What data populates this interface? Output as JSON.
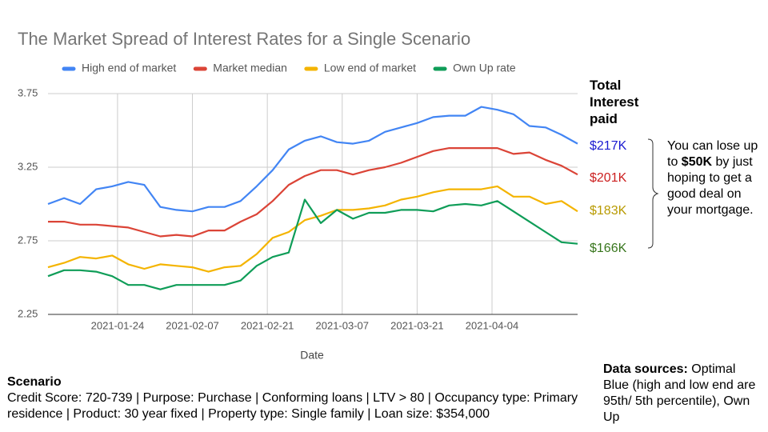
{
  "chart_data": {
    "type": "line",
    "title": "The Market Spread of Interest Rates for a Single Scenario",
    "xlabel": "Date",
    "x": [
      "2021-01-11",
      "2021-01-14",
      "2021-01-17",
      "2021-01-20",
      "2021-01-23",
      "2021-01-26",
      "2021-01-29",
      "2021-02-01",
      "2021-02-04",
      "2021-02-07",
      "2021-02-10",
      "2021-02-13",
      "2021-02-16",
      "2021-02-19",
      "2021-02-22",
      "2021-02-25",
      "2021-02-28",
      "2021-03-03",
      "2021-03-06",
      "2021-03-09",
      "2021-03-12",
      "2021-03-15",
      "2021-03-18",
      "2021-03-21",
      "2021-03-24",
      "2021-03-27",
      "2021-03-30",
      "2021-04-02",
      "2021-04-05",
      "2021-04-08",
      "2021-04-11",
      "2021-04-14",
      "2021-04-17",
      "2021-04-20"
    ],
    "series": [
      {
        "name": "High end of market",
        "color": "#4285f4",
        "values": [
          3.0,
          3.04,
          3.0,
          3.1,
          3.12,
          3.15,
          3.13,
          2.98,
          2.96,
          2.95,
          2.98,
          2.98,
          3.02,
          3.12,
          3.23,
          3.37,
          3.43,
          3.46,
          3.42,
          3.41,
          3.43,
          3.49,
          3.52,
          3.55,
          3.59,
          3.6,
          3.6,
          3.66,
          3.64,
          3.61,
          3.53,
          3.52,
          3.47,
          3.41
        ]
      },
      {
        "name": "Market median",
        "color": "#db4437",
        "values": [
          2.88,
          2.88,
          2.86,
          2.86,
          2.85,
          2.84,
          2.81,
          2.78,
          2.79,
          2.78,
          2.82,
          2.82,
          2.88,
          2.93,
          3.02,
          3.13,
          3.19,
          3.23,
          3.23,
          3.2,
          3.23,
          3.25,
          3.28,
          3.32,
          3.36,
          3.38,
          3.38,
          3.38,
          3.38,
          3.34,
          3.35,
          3.3,
          3.26,
          3.2
        ]
      },
      {
        "name": "Low end of market",
        "color": "#f4b400",
        "values": [
          2.57,
          2.6,
          2.64,
          2.63,
          2.65,
          2.59,
          2.56,
          2.59,
          2.58,
          2.57,
          2.54,
          2.57,
          2.58,
          2.66,
          2.77,
          2.81,
          2.89,
          2.92,
          2.96,
          2.96,
          2.97,
          2.99,
          3.03,
          3.05,
          3.08,
          3.1,
          3.1,
          3.1,
          3.12,
          3.05,
          3.05,
          3.0,
          3.02,
          2.95
        ]
      },
      {
        "name": "Own Up rate",
        "color": "#0f9d58",
        "values": [
          2.51,
          2.55,
          2.55,
          2.54,
          2.51,
          2.45,
          2.45,
          2.42,
          2.45,
          2.45,
          2.45,
          2.45,
          2.48,
          2.58,
          2.64,
          2.67,
          3.03,
          2.87,
          2.96,
          2.9,
          2.94,
          2.94,
          2.96,
          2.96,
          2.95,
          2.99,
          3.0,
          2.99,
          3.02,
          2.95,
          2.88,
          2.81,
          2.74,
          2.73
        ]
      }
    ],
    "xlim": [
      "2021-01-11",
      "2021-04-20"
    ],
    "xticks": [
      "2021-01-24",
      "2021-02-07",
      "2021-02-21",
      "2021-03-07",
      "2021-03-21",
      "2021-04-04"
    ],
    "ylim": [
      2.25,
      3.75
    ],
    "yticks": [
      2.25,
      2.75,
      3.25,
      3.75
    ],
    "grid": true,
    "legend": "top"
  },
  "side_panel": {
    "title": "Total Interest paid",
    "totals": [
      {
        "label": "$217K",
        "color": "#1a1ad0"
      },
      {
        "label": "$201K",
        "color": "#cc1f1f"
      },
      {
        "label": "$183K",
        "color": "#b89a00"
      },
      {
        "label": "$166K",
        "color": "#38761d"
      }
    ],
    "note": {
      "before": "You can lose up to",
      "bold": "$50K",
      "after": "by just hoping to get a good deal on your mortgage."
    }
  },
  "scenario": {
    "title": "Scenario",
    "text": "Credit Score: 720-739 | Purpose: Purchase | Conforming loans | LTV > 80 | Occupancy type: Primary residence | Product: 30 year fixed | Property type: Single family | Loan size: $354,000"
  },
  "data_sources": {
    "label": "Data sources:",
    "text": "Optimal Blue (high and low end are 95th/ 5th percentile), Own Up"
  }
}
